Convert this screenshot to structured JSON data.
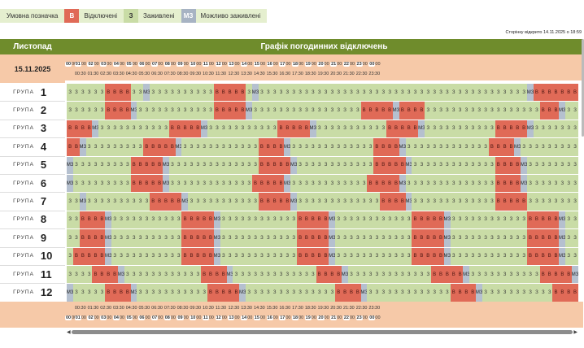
{
  "legend": {
    "label": "Умовна позначка",
    "items": [
      {
        "code": "В",
        "text": "Відключені",
        "color": "#e06a57"
      },
      {
        "code": "З",
        "text": "Заживлені",
        "color": "#c9dca6"
      },
      {
        "code": "МЗ",
        "text": "Можливо заживлені",
        "color": "#a7b3c3"
      }
    ]
  },
  "page_opened": "Сторінку відкрито 14.11.2025 о 18:59",
  "header": {
    "month": "Листопад",
    "title": "Графік погодинних відключень"
  },
  "date": "15.11.2025",
  "group_word": "ГРУПА",
  "hours": [
    "00",
    "01",
    "02",
    "03",
    "04",
    "05",
    "06",
    "07",
    "08",
    "09",
    "10",
    "11",
    "12",
    "13",
    "14",
    "15",
    "16",
    "17",
    "18",
    "19",
    "20",
    "21",
    "22",
    "23",
    "00"
  ],
  "minutes": "00",
  "halves": [
    "00:30",
    "01:30",
    "02:30",
    "03:30",
    "04:30",
    "05:30",
    "06:30",
    "07:30",
    "08:30",
    "09:30",
    "10:30",
    "11:30",
    "12:30",
    "13:30",
    "14:30",
    "15:30",
    "16:30",
    "17:30",
    "18:30",
    "19:30",
    "20:30",
    "21:30",
    "22:30",
    "23:30"
  ],
  "codes": {
    "B": "В",
    "Z": "З",
    "M": "МЗ"
  },
  "groups": [
    {
      "num": "1",
      "cells": "ZZZZZZBBBBZZMZZZZZZZZZZBBBBBZMZZZZZZZZZZZZZZZZZZZZZZZZZZZZZZZZZZZZZZZZZZMBBBBBBB"
    },
    {
      "num": "2",
      "cells": "ZZZZZZBBBBMZZZZZZZZZZZZBBBBBMZZZZZZZZZZZZZZZZZBBBBBMBBBBZZZZZZZZZZZZZZZZZZBBBMZZZZZ"
    },
    {
      "num": "3",
      "cells": "BBBBMZZZZZZZZZZZBBBBBMZZZZZZZZZZZBBBBBMZZZZZZZZZZZBBBBBMZZZZZZZZZZZBBBBBMZZZZZZZZZZZ"
    },
    {
      "num": "4",
      "cells": "BBMZZZZZZZZZBBBBBMZZZZZZZZZZZZBBBBMZZZZZZZZZZZZZBBBBMZZZZZZZZZZZZZBBBBMZZZZZZZZZZZZ"
    },
    {
      "num": "5",
      "cells": "MZZZZZZZZZBBBBBMZZZZZZZZZZZZZZBBBBBMZZZZZZZZZZZZBBBBBMZZZZZZZZZZZZZBBBBMZZZZZZZZZZZZ"
    },
    {
      "num": "6",
      "cells": "MZZZZZZZZZBBBBBMZZZZZZZZZZZZZBBBBBMZZZZZZZZZZZZBBBBBMZZZZZZZZZZZZZZBBBBMZZZZZZZZZZZZ"
    },
    {
      "num": "7",
      "cells": "ZZMZZZZZZZZZZBBBBBMZZZZZZZZZZZBBBBBMZZZZZZZZZZZZZBBBBMZZZZZZZZZZZZZBBBBBZZZZZZZZZZZZZ"
    },
    {
      "num": "8",
      "cells": "ZZBBBBMZZZZZZZZZZZBBBBBMZZZZZZZZZZZZBBBBBMZZZZZZZZZZZZBBBBBMZZZZZZZZZZZZBBBBBMZZZZZZ"
    },
    {
      "num": "9",
      "cells": "ZZBBBBMZZZZZZZZZZZBBBBBMZZZZZZZZZZZZBBBBBMZZZZZZZZZZZZBBBBBMZZZZZZZZZZZZBBBBBMZZZZZZ"
    },
    {
      "num": "10",
      "cells": "ZBBBBBMZZZZZZZZZZZBBBBBMZZZZZZZZZZZZBBBBBMZZZZZZZZZZZZBBBBBMZZZZZZZZZZZZBBBBBMZZZZZZ"
    },
    {
      "num": "11",
      "cells": "ZZZZBBBBMZZZZZZZZZZZZBBBBMZZZZZZZZZZZZZBBBBMZZZZZZZZZZZZZBBBBBMZZZZZZZZZZZBBBBBMZZZZ"
    },
    {
      "num": "12",
      "cells": "MZZZZZBBBBMZZZZZZZZZZZBBBBBMZZZZZZZZZZZZZZBBBBMZZZZZZZZZZZZZBBBBMZZZZZZZZZZZBBBBMZZZ"
    }
  ]
}
